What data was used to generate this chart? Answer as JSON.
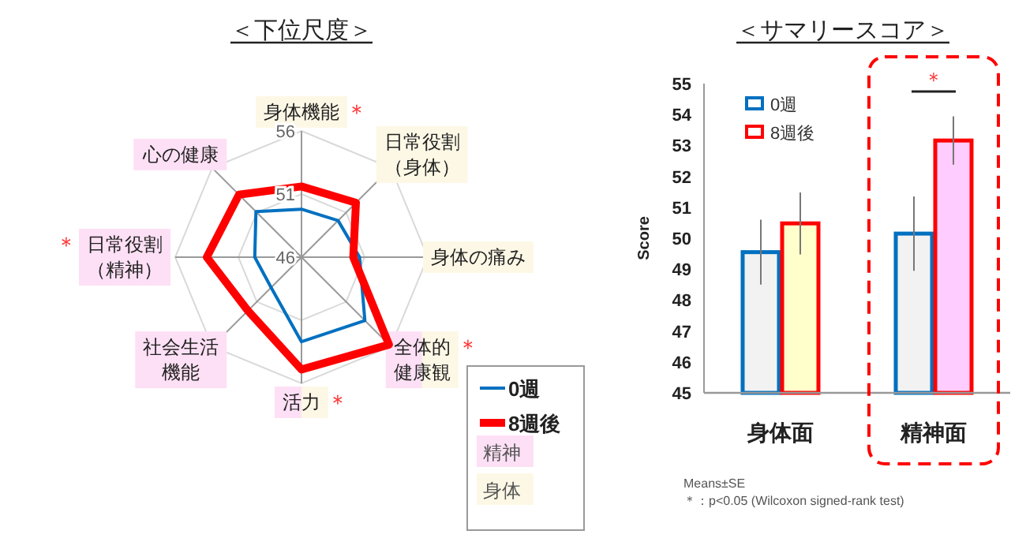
{
  "chart_data": [
    {
      "type": "radar",
      "title": "＜下位尺度＞",
      "categories": [
        "身体機能",
        "日常役割（身体）",
        "身体の痛み",
        "全体的健康観",
        "活力",
        "社会生活機能",
        "日常役割（精神）",
        "心の健康"
      ],
      "series": [
        {
          "name": "0週",
          "color": "#0070c0",
          "values": [
            49.8,
            50.1,
            50.6,
            53.1,
            52.7,
            49.4,
            49.7,
            51.1
          ]
        },
        {
          "name": "8週後",
          "color": "#ff0000",
          "values": [
            51.6,
            52.1,
            50.1,
            55.8,
            54.9,
            52.0,
            53.5,
            53.0
          ]
        }
      ],
      "ylim": [
        46,
        56
      ],
      "yticks": [
        46,
        51,
        56
      ],
      "legend": "bottom right",
      "annotations": [
        {
          "text": "＊",
          "x": "身体機能"
        },
        {
          "text": "＊",
          "x": "全体的健康観"
        },
        {
          "text": "＊",
          "x": "活力"
        },
        {
          "text": "＊",
          "x": "日常役割（精神）"
        },
        "精神",
        "身体"
      ]
    },
    {
      "type": "bar",
      "title": "＜サマリースコア＞",
      "ylabel": "Score",
      "categories": [
        "身体面",
        "精神面"
      ],
      "series": [
        {
          "name": "0週",
          "color": "#0070c0",
          "colors": [
            "#f2f2f2",
            "#f2f2f2"
          ],
          "values": [
            49.55,
            50.15
          ],
          "errors": [
            1.05,
            1.2
          ]
        },
        {
          "name": "8週後",
          "color": "#ff0000",
          "colors": [
            "#ffffcc",
            "#ffccff"
          ],
          "values": [
            50.48,
            53.16
          ],
          "errors": [
            1.0,
            0.78
          ]
        }
      ],
      "ylim": [
        45,
        55
      ],
      "yticks": [
        45,
        46,
        47,
        48,
        49,
        50,
        51,
        52,
        53,
        54,
        55
      ],
      "legend": "top left",
      "annotations": [
        "＊",
        "Means±SE",
        "＊：p<0.05 (Wilcoxon signed-rank test)"
      ]
    }
  ]
}
